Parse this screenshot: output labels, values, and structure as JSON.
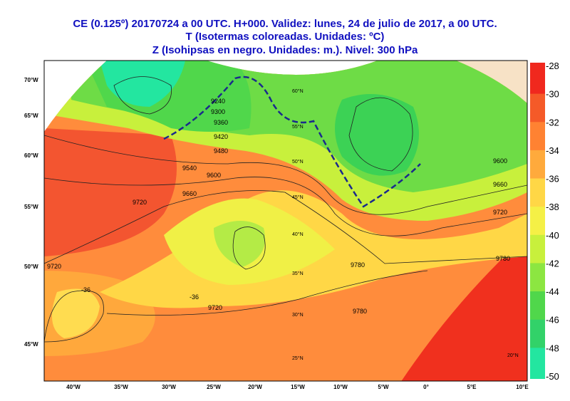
{
  "header": {
    "lines": [
      "CE (0.125º) 20170724 a 00 UTC.  H+000. Validez: lunes, 24 de julio de 2017,  a  00 UTC.",
      "T (Isotermas coloreadas. Unidades: ºC)",
      "Z (Isohipsas en negro. Unidades: m.).    Nivel: 300 hPa"
    ]
  },
  "colorbar": {
    "ticks": [
      -28,
      -30,
      -32,
      -34,
      -36,
      -38,
      -40,
      -42,
      -44,
      -46,
      -48,
      -50
    ],
    "colors": [
      "#f0281e",
      "#f55a28",
      "#ff8232",
      "#ffaa3c",
      "#ffd746",
      "#f5f046",
      "#c8f03c",
      "#8ce641",
      "#50d74b",
      "#32d269",
      "#23e6a0"
    ]
  },
  "left_labels": [
    "70°W",
    "65°W",
    "60°W",
    "55°W",
    "50°W",
    "45°W"
  ],
  "bottom_labels": [
    "40°W",
    "35°W",
    "30°W",
    "25°W",
    "20°W",
    "15°W",
    "10°W",
    "5°W",
    "0°",
    "5°E",
    "10°E"
  ],
  "lat_labels": [
    "60°N",
    "55°N",
    "50°N",
    "45°N",
    "40°N",
    "35°N",
    "30°N",
    "25°N",
    "20°N"
  ],
  "contour_labels": [
    "9720",
    "9660",
    "9600",
    "9540",
    "9720",
    "9720",
    "9720",
    "9660",
    "9600",
    "9780",
    "9780",
    "9780",
    "-36",
    "-36",
    "9480",
    "9420",
    "9360",
    "9300",
    "9240"
  ]
}
